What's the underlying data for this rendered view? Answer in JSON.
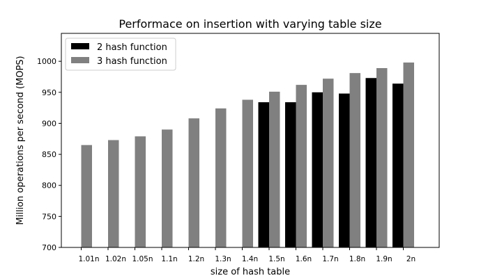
{
  "chart_data": {
    "type": "bar",
    "title": "Performace on insertion with varying table size",
    "xlabel": "size of hash table",
    "ylabel": "Million operations per second (MOPS)",
    "categories": [
      "1.01n",
      "1.02n",
      "1.05n",
      "1.1n",
      "1.2n",
      "1.3n",
      "1.4n",
      "1.5n",
      "1.6n",
      "1.7n",
      "1.8n",
      "1.9n",
      "2n"
    ],
    "series": [
      {
        "name": "2 hash function",
        "color": "#000000",
        "values": [
          null,
          null,
          null,
          null,
          null,
          null,
          null,
          934,
          934,
          950,
          948,
          973,
          964
        ]
      },
      {
        "name": "3 hash function",
        "color": "#808080",
        "values": [
          865,
          873,
          879,
          890,
          908,
          924,
          938,
          951,
          962,
          972,
          981,
          989,
          998
        ]
      }
    ],
    "ylim": [
      700,
      1045
    ],
    "yticks": [
      700,
      750,
      800,
      850,
      900,
      950,
      1000
    ],
    "grid": false,
    "legend": {
      "position": "top-left"
    }
  }
}
